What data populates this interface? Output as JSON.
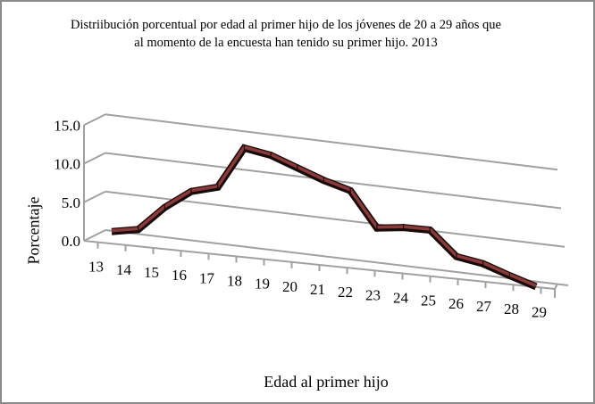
{
  "chart_data": {
    "type": "line",
    "style": "3d-line",
    "title": "Distriibución porcentual por edad al primer  hijo de los jóvenes de 20 a 29 años que al momento de la encuesta han tenido su primer hijo.  2013",
    "title_lines": [
      "Distriibución porcentual por edad al primer  hijo de los jóvenes de 20 a 29 años que",
      "al momento de la encuesta han tenido su primer hijo.  2013"
    ],
    "xlabel": "Edad al primer hijo",
    "ylabel": "Porcentaje",
    "categories": [
      "13",
      "14",
      "15",
      "16",
      "17",
      "18",
      "19",
      "20",
      "21",
      "22",
      "23",
      "24",
      "25",
      "26",
      "27",
      "28",
      "29"
    ],
    "values": [
      0.5,
      1.2,
      4.5,
      7.0,
      8.0,
      13.5,
      13.0,
      11.8,
      10.6,
      9.7,
      5.3,
      5.8,
      5.9,
      2.9,
      2.4,
      1.3,
      0.3
    ],
    "y_ticks": [
      "0.0",
      "5.0",
      "10.0",
      "15.0"
    ],
    "ylim": [
      0,
      15
    ],
    "grid": true,
    "legend": "none",
    "colors": {
      "line_fill": "#8b3a3a",
      "line_edge": "#1a0a0a",
      "grid": "#a0a0a0"
    }
  }
}
